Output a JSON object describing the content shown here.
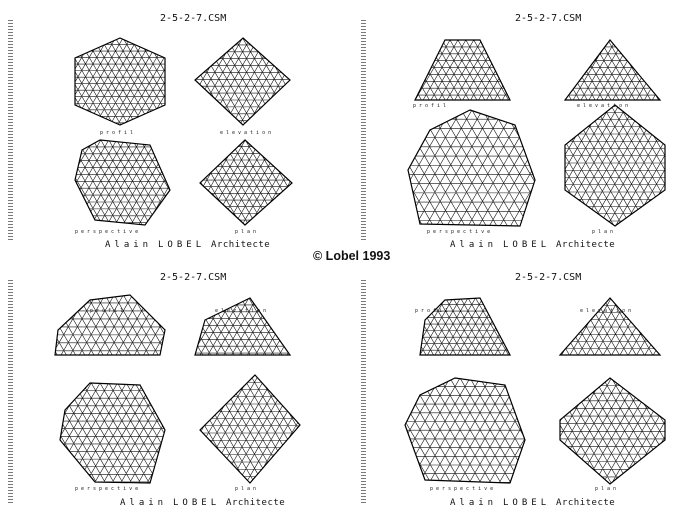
{
  "sheets": [
    {
      "file": "2-5-2-7.CSM",
      "labels": [
        "profil",
        "elevation",
        "perspective",
        "plan"
      ]
    },
    {
      "file": "2-5-2-7.CSM",
      "labels": [
        "profil",
        "elevation",
        "perspective",
        "plan"
      ]
    },
    {
      "file": "2-5-2-7.CSM",
      "labels": [
        "profil",
        "elevation",
        "perspective",
        "plan"
      ]
    },
    {
      "file": "2-5-2-7.CSM",
      "labels": [
        "profil",
        "elevation",
        "perspective",
        "plan"
      ]
    }
  ],
  "signature": {
    "first": "Alain",
    "last": "LOBEL",
    "role": "Architecte"
  },
  "copyright": "© Lobel 1993",
  "colors": {
    "ink": "#111111",
    "paper": "#ffffff"
  }
}
